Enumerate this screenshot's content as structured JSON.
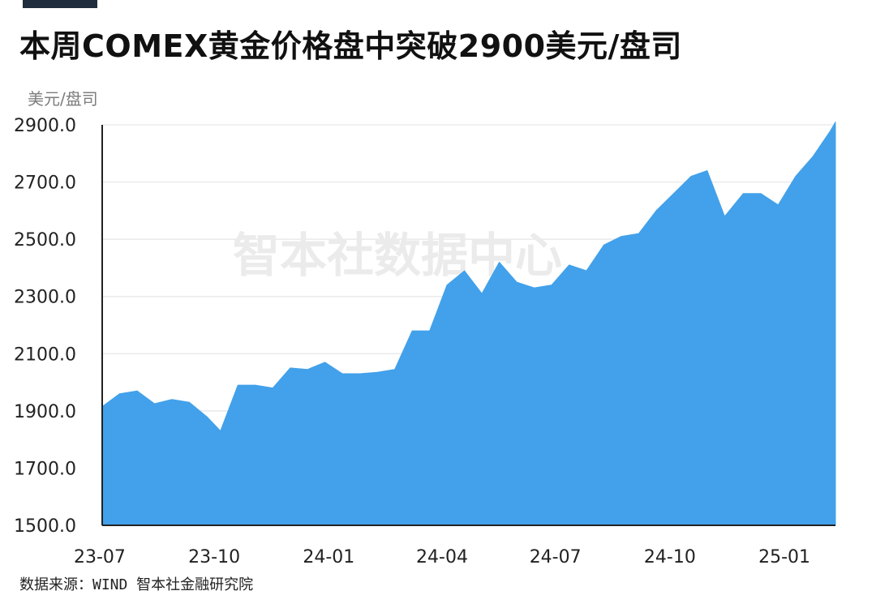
{
  "title": "本周COMEX黄金价格盘中突破2900美元/盘司",
  "source": "数据来源：WIND 智本社金融研究院",
  "watermark": "智本社数据中心",
  "colors": {
    "area_fill": "#42a1ea",
    "axis": "#222222",
    "grid": "#e6e6e6",
    "watermark": "#ebebeb"
  },
  "chart_data": {
    "type": "area",
    "title": "本周COMEX黄金价格盘中突破2900美元/盘司",
    "ylabel": "美元/盘司",
    "xlabel": "",
    "ylim": [
      1500,
      2900
    ],
    "yticks": [
      "1500.0",
      "1700.0",
      "1900.0",
      "2100.0",
      "2300.0",
      "2500.0",
      "2700.0",
      "2900.0"
    ],
    "xticks": [
      "23-07",
      "23-10",
      "24-01",
      "24-04",
      "24-07",
      "24-10",
      "25-01"
    ],
    "grid": true,
    "legend": "none",
    "series": [
      {
        "x": [
          "23-07-03",
          "23-07-17",
          "23-07-31",
          "23-08-14",
          "23-08-28",
          "23-09-11",
          "23-09-25",
          "23-10-06",
          "23-10-20",
          "23-11-03",
          "23-11-17",
          "23-12-01",
          "23-12-15",
          "23-12-29",
          "24-01-12",
          "24-01-26",
          "24-02-09",
          "24-02-23",
          "24-03-08",
          "24-03-22",
          "24-04-05",
          "24-04-19",
          "24-05-03",
          "24-05-17",
          "24-05-31",
          "24-06-14",
          "24-06-28",
          "24-07-12",
          "24-07-26",
          "24-08-09",
          "24-08-23",
          "24-09-06",
          "24-09-20",
          "24-10-04",
          "24-10-18",
          "24-10-31",
          "24-11-14",
          "24-11-29",
          "24-12-13",
          "24-12-27",
          "25-01-10",
          "25-01-24",
          "25-02-07",
          "25-02-11"
        ],
        "values": [
          1915,
          1960,
          1970,
          1925,
          1940,
          1930,
          1880,
          1830,
          1990,
          1990,
          1980,
          2050,
          2045,
          2070,
          2030,
          2030,
          2035,
          2045,
          2180,
          2180,
          2340,
          2390,
          2310,
          2420,
          2350,
          2330,
          2340,
          2410,
          2390,
          2480,
          2510,
          2520,
          2600,
          2660,
          2720,
          2740,
          2580,
          2660,
          2660,
          2620,
          2720,
          2790,
          2880,
          2910
        ]
      }
    ]
  }
}
